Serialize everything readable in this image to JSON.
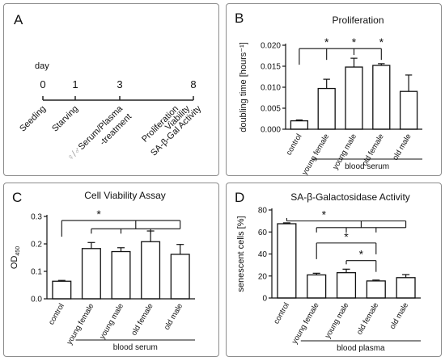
{
  "panels": {
    "A": {
      "letter": "A",
      "day_label": "day",
      "days": [
        "0",
        "1",
        "3",
        "8"
      ],
      "events": [
        {
          "day_index": 0,
          "label": "Seeding"
        },
        {
          "day_index": 1,
          "label": "Starving"
        },
        {
          "day_index": 2,
          "label": "Serum/Plasma",
          "sub": "-treatment",
          "symbol": "♀/♂"
        },
        {
          "day_index": 3,
          "label": "Proliferation"
        },
        {
          "day_index": 3,
          "label": "Viability"
        },
        {
          "day_index": 3,
          "label": "SA-β-Gal Activity"
        }
      ]
    },
    "B": {
      "letter": "B"
    },
    "C": {
      "letter": "C"
    },
    "D": {
      "letter": "D"
    }
  },
  "chart_data": [
    {
      "panel": "B",
      "type": "bar",
      "title": "Proliferation",
      "ylabel": "doubling time [hours⁻¹]",
      "group_label": "blood serum",
      "categories": [
        "control",
        "young female",
        "young male",
        "old female",
        "old male"
      ],
      "values": [
        0.002,
        0.0097,
        0.0148,
        0.0152,
        0.009
      ],
      "errors": [
        0.0002,
        0.0022,
        0.0021,
        0.0004,
        0.0039
      ],
      "ylim": [
        0,
        0.02
      ],
      "yticks": [
        0,
        0.005,
        0.01,
        0.015,
        0.02
      ],
      "ytick_labels": [
        "0.000",
        "0.005",
        "0.010",
        "0.015",
        "0.020"
      ],
      "significance": [
        {
          "from": 0,
          "targets": [
            1,
            2,
            3
          ],
          "y": 0.0192,
          "stars": [
            "*",
            "*",
            "*"
          ]
        }
      ]
    },
    {
      "panel": "C",
      "type": "bar",
      "title": "Cell Viability Assay",
      "ylabel": "OD",
      "ylabel_sub": "450",
      "group_label": "blood serum",
      "categories": [
        "control",
        "young female",
        "young male",
        "old female",
        "old male"
      ],
      "values": [
        0.064,
        0.183,
        0.172,
        0.208,
        0.162
      ],
      "errors": [
        0.003,
        0.022,
        0.014,
        0.039,
        0.036
      ],
      "ylim": [
        0,
        0.3
      ],
      "yticks": [
        0,
        0.1,
        0.2,
        0.3
      ],
      "ytick_labels": [
        "0.0",
        "0.1",
        "0.2",
        "0.3"
      ],
      "significance": [
        {
          "from": 0,
          "targets": [
            1,
            2,
            3,
            4
          ],
          "y": 0.285,
          "inner_y": 0.255,
          "stars": [
            "*"
          ]
        }
      ]
    },
    {
      "panel": "D",
      "type": "bar",
      "title": "SA-β-Galactosidase Activity",
      "ylabel": "senescent cells [%]",
      "group_label": "blood plasma",
      "categories": [
        "control",
        "young female",
        "young male",
        "old female",
        "old male"
      ],
      "values": [
        67.5,
        21,
        23,
        15.5,
        18.5
      ],
      "errors": [
        0.8,
        1.5,
        3.2,
        0.8,
        2.8
      ],
      "ylim": [
        0,
        80
      ],
      "yticks": [
        0,
        20,
        40,
        60,
        80
      ],
      "ytick_labels": [
        "0",
        "20",
        "40",
        "60",
        "80"
      ],
      "significance": [
        {
          "from": 0,
          "targets": [
            1,
            2,
            3,
            4
          ],
          "y": 70,
          "inner_y": 64,
          "stars": [
            "*"
          ]
        },
        {
          "from": 1,
          "targets": [
            3
          ],
          "y": 50,
          "stars": [
            "*"
          ]
        },
        {
          "from": 2,
          "targets": [
            3
          ],
          "y": 34,
          "stars": [
            "*"
          ]
        }
      ]
    }
  ]
}
